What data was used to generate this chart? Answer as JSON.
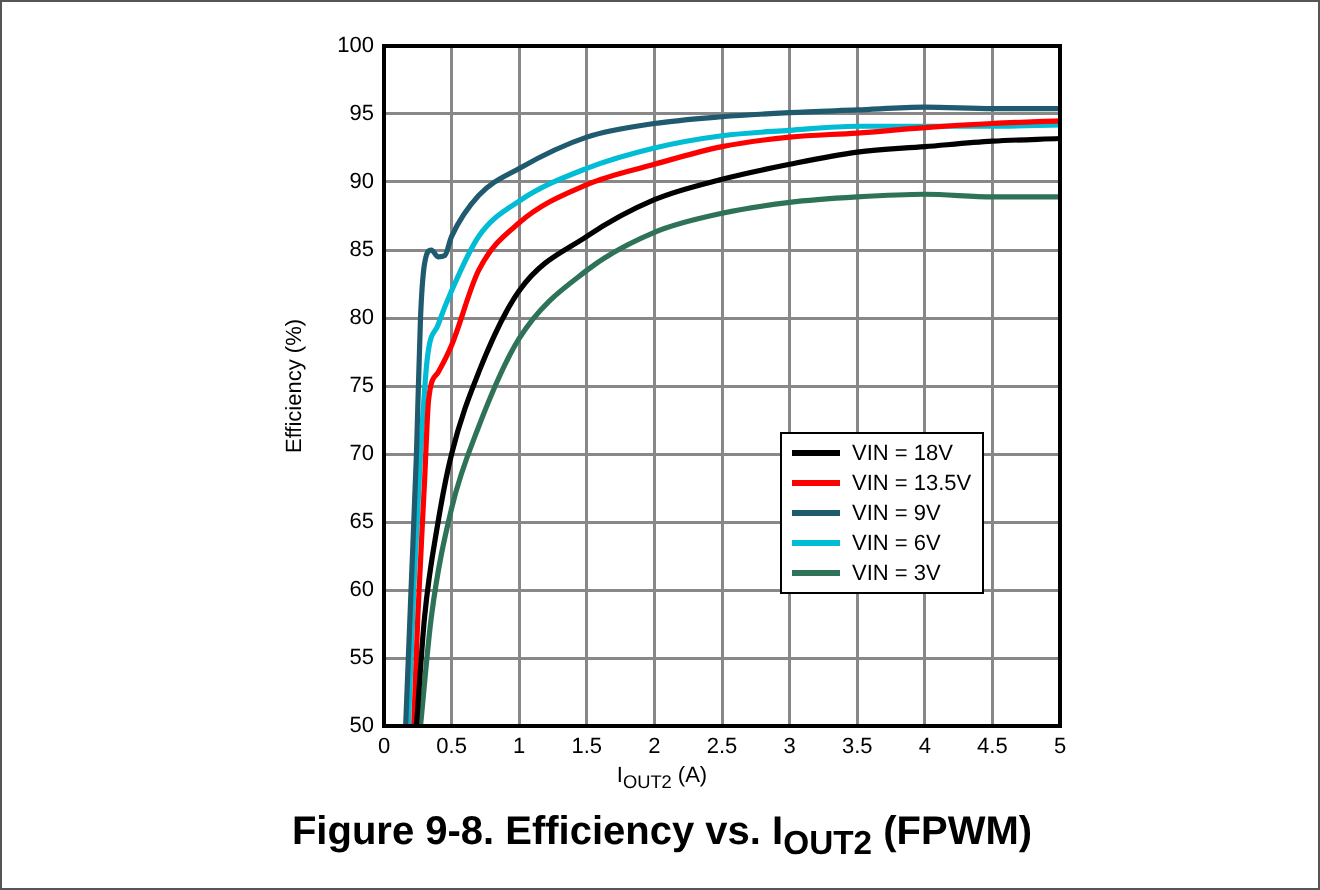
{
  "chart_data": {
    "type": "line",
    "title": "Figure 9-8. Efficiency vs. I$_{OUT2}$ (FPWM)",
    "xlabel": "I$_{OUT2}$ (A)",
    "ylabel": "Efficiency (%)",
    "xlim": [
      0,
      5
    ],
    "xticks": [
      0,
      0.5,
      1,
      1.5,
      2,
      2.5,
      3,
      3.5,
      4,
      4.5,
      5
    ],
    "ylim": [
      50,
      100
    ],
    "yticks": [
      50,
      55,
      60,
      65,
      70,
      75,
      80,
      85,
      90,
      95,
      100
    ],
    "grid": true,
    "legend": "right",
    "marker": "none",
    "line_style": "solid",
    "series": [
      {
        "name": "VIN = 18V",
        "color": "#000000",
        "x": [
          0.24,
          0.3,
          0.4,
          0.5,
          0.7,
          1,
          1.5,
          2,
          2.5,
          3,
          3.5,
          4,
          4.5,
          5
        ],
        "values": [
          50,
          58,
          65,
          70,
          76,
          82,
          86,
          88.7,
          90.2,
          91.3,
          92.2,
          92.6,
          93,
          93.2
        ]
      },
      {
        "name": "VIN = 13.5V",
        "color": "#ff0000",
        "x": [
          0.22,
          0.25,
          0.3,
          0.33,
          0.4,
          0.5,
          0.7,
          1,
          1.5,
          2,
          2.5,
          3,
          3.5,
          4,
          4.5,
          5
        ],
        "values": [
          50,
          58,
          68,
          74,
          76,
          78,
          83.5,
          87,
          89.8,
          91.3,
          92.6,
          93.3,
          93.6,
          94,
          94.3,
          94.5
        ]
      },
      {
        "name": "VIN = 9V",
        "color": "#1f5a6e",
        "x": [
          0.16,
          0.2,
          0.24,
          0.27,
          0.3,
          0.35,
          0.4,
          0.45,
          0.5,
          0.7,
          1,
          1.5,
          2,
          2.5,
          3,
          3.5,
          4,
          4.5,
          5
        ],
        "values": [
          50,
          60,
          70,
          80,
          84,
          85,
          84.5,
          84.6,
          86,
          89,
          91,
          93.3,
          94.3,
          94.8,
          95.1,
          95.3,
          95.5,
          95.4,
          95.4
        ]
      },
      {
        "name": "VIN = 6V",
        "color": "#00bcd4",
        "x": [
          0.18,
          0.22,
          0.27,
          0.32,
          0.4,
          0.5,
          0.7,
          1,
          1.5,
          2,
          2.5,
          3,
          3.5,
          4,
          4.5,
          5
        ],
        "values": [
          50,
          60,
          70,
          77,
          79.5,
          82,
          86,
          88.6,
          91,
          92.5,
          93.4,
          93.8,
          94.1,
          94.1,
          94.1,
          94.2
        ]
      },
      {
        "name": "VIN = 3V",
        "color": "#2e7358",
        "x": [
          0.27,
          0.35,
          0.5,
          0.7,
          1,
          1.5,
          2,
          2.5,
          3,
          3.5,
          4,
          4.5,
          5
        ],
        "values": [
          50,
          58,
          66,
          72,
          78.5,
          83.5,
          86.3,
          87.7,
          88.5,
          88.9,
          89.1,
          88.9,
          88.9
        ]
      }
    ]
  }
}
